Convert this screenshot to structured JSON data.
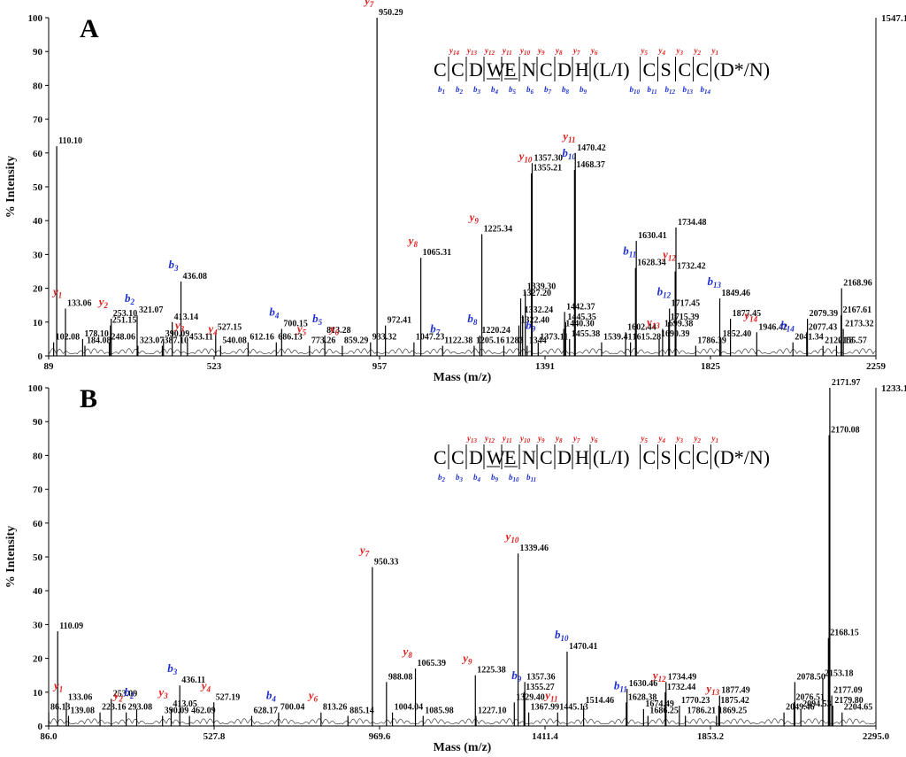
{
  "chart_data": [
    {
      "type": "spectrum",
      "panel_label": "A",
      "xlabel": "Mass (m/z)",
      "ylabel": "% Intensity",
      "xlim": [
        89,
        2259
      ],
      "ylim": [
        0,
        100
      ],
      "x_ticks": [
        "89",
        "523",
        "957",
        "1391",
        "1825",
        "2259"
      ],
      "y_ticks": [
        "0",
        "10",
        "20",
        "30",
        "40",
        "50",
        "60",
        "70",
        "80",
        "90",
        "100"
      ],
      "max_counts_label": "1547.1",
      "sequence": [
        "C",
        "|C",
        "|D",
        "|W",
        "|E",
        "|N",
        "|C",
        "|D",
        "|H",
        "|(L/I)",
        "|C",
        "|S",
        "|C",
        "|C",
        "|(D*/N)"
      ],
      "y_ions_top": [
        "y14",
        "y13",
        "y12",
        "y11",
        "y10",
        "y9",
        "y8",
        "y7",
        "y6",
        "y5",
        "y4",
        "y3",
        "y2",
        "y1"
      ],
      "b_ions_bottom": [
        "b1",
        "b2",
        "b3",
        "b4",
        "b5",
        "b6",
        "b7",
        "b8",
        "b9",
        "b10",
        "b11",
        "b12",
        "b13",
        "b14"
      ],
      "peaks": [
        {
          "x": 102.08,
          "y": 4,
          "label": "102.08"
        },
        {
          "x": 110.1,
          "y": 62,
          "label": "110.10"
        },
        {
          "x": 133.06,
          "y": 14,
          "label": "133.06",
          "ion": "y1"
        },
        {
          "x": 178.1,
          "y": 5,
          "label": "178.10"
        },
        {
          "x": 184.08,
          "y": 3,
          "label": "184.08"
        },
        {
          "x": 248.06,
          "y": 4,
          "label": "248.06"
        },
        {
          "x": 251.15,
          "y": 9,
          "label": "251.15"
        },
        {
          "x": 253.1,
          "y": 11,
          "label": "253.10",
          "ion": "y2"
        },
        {
          "x": 321.07,
          "y": 12,
          "label": "321.07",
          "ion": "b2"
        },
        {
          "x": 323.07,
          "y": 3,
          "label": "323.07"
        },
        {
          "x": 387.1,
          "y": 3,
          "label": "387.10"
        },
        {
          "x": 390.09,
          "y": 5,
          "label": "390.09"
        },
        {
          "x": 413.14,
          "y": 10,
          "label": "413.14"
        },
        {
          "x": 436.08,
          "y": 22,
          "label": "436.08",
          "ion": "b3"
        },
        {
          "x": 453.11,
          "y": 4,
          "label": "453.11",
          "ion": "y3"
        },
        {
          "x": 527.15,
          "y": 7,
          "label": "527.15"
        },
        {
          "x": 540.08,
          "y": 3,
          "label": "540.08",
          "ion": "y4"
        },
        {
          "x": 612.16,
          "y": 4,
          "label": "612.16"
        },
        {
          "x": 686.13,
          "y": 4,
          "label": "686.13"
        },
        {
          "x": 700.15,
          "y": 8,
          "label": "700.15",
          "ion": "b4"
        },
        {
          "x": 773.26,
          "y": 3,
          "label": "773.26",
          "ion": "y5"
        },
        {
          "x": 813.28,
          "y": 6,
          "label": "813.28",
          "ion": "b5"
        },
        {
          "x": 859.29,
          "y": 3,
          "label": "859.29",
          "ion": "y6"
        },
        {
          "x": 933.32,
          "y": 4,
          "label": "933.32"
        },
        {
          "x": 950.29,
          "y": 100,
          "label": "950.29",
          "ion": "y7"
        },
        {
          "x": 972.41,
          "y": 9,
          "label": "972.41"
        },
        {
          "x": 1047.23,
          "y": 4,
          "label": "1047.23"
        },
        {
          "x": 1065.31,
          "y": 29,
          "label": "1065.31",
          "ion": "y8"
        },
        {
          "x": 1122.38,
          "y": 3,
          "label": "1122.38",
          "ion": "b7"
        },
        {
          "x": 1205.16,
          "y": 3,
          "label": "1205.16"
        },
        {
          "x": 1220.24,
          "y": 6,
          "label": "1220.24",
          "ion": "b8"
        },
        {
          "x": 1225.34,
          "y": 36,
          "label": "1225.34",
          "ion": "y9"
        },
        {
          "x": 1283,
          "y": 3,
          "label": "1283"
        },
        {
          "x": 1322.4,
          "y": 9,
          "label": "1322.40"
        },
        {
          "x": 1327.2,
          "y": 17,
          "label": "1327.20"
        },
        {
          "x": 1332.24,
          "y": 12,
          "label": "1332.24"
        },
        {
          "x": 1339.3,
          "y": 19,
          "label": "1339.30"
        },
        {
          "x": 1344,
          "y": 3,
          "label": "1344"
        },
        {
          "x": 1355.21,
          "y": 54,
          "label": "1355.21",
          "ion": "y10"
        },
        {
          "x": 1357.3,
          "y": 57,
          "label": "1357.30"
        },
        {
          "x": 1373.11,
          "y": 4,
          "label": "1373.11",
          "ion": "b9"
        },
        {
          "x": 1440.3,
          "y": 8,
          "label": "1440.30"
        },
        {
          "x": 1442.37,
          "y": 13,
          "label": "1442.37"
        },
        {
          "x": 1445.35,
          "y": 10,
          "label": "1445.35"
        },
        {
          "x": 1455.38,
          "y": 5,
          "label": "1455.38"
        },
        {
          "x": 1468.37,
          "y": 55,
          "label": "1468.37",
          "ion": "b10"
        },
        {
          "x": 1470.42,
          "y": 60,
          "label": "1470.42",
          "ion": "y11"
        },
        {
          "x": 1539.41,
          "y": 4,
          "label": "1539.41"
        },
        {
          "x": 1602.44,
          "y": 7,
          "label": "1602.44"
        },
        {
          "x": 1615.28,
          "y": 4,
          "label": "1615.28"
        },
        {
          "x": 1628.34,
          "y": 26,
          "label": "1628.34",
          "ion": "b11"
        },
        {
          "x": 1630.41,
          "y": 34,
          "label": "1630.41"
        },
        {
          "x": 1690.39,
          "y": 5,
          "label": "1690.39",
          "ion": "y13"
        },
        {
          "x": 1699.38,
          "y": 8,
          "label": "1699.38"
        },
        {
          "x": 1715.39,
          "y": 10,
          "label": "1715.39"
        },
        {
          "x": 1717.45,
          "y": 14,
          "label": "1717.45",
          "ion": "b12"
        },
        {
          "x": 1732.42,
          "y": 25,
          "label": "1732.42",
          "ion": "y12"
        },
        {
          "x": 1734.48,
          "y": 38,
          "label": "1734.48"
        },
        {
          "x": 1786.39,
          "y": 3,
          "label": "1786.39"
        },
        {
          "x": 1849.46,
          "y": 17,
          "label": "1849.46",
          "ion": "b13"
        },
        {
          "x": 1852.4,
          "y": 5,
          "label": "1852.40"
        },
        {
          "x": 1877.45,
          "y": 11,
          "label": "1877.45"
        },
        {
          "x": 1946.42,
          "y": 7,
          "label": "1946.42",
          "ion": "y14"
        },
        {
          "x": 2041.34,
          "y": 4,
          "label": "2041.34",
          "ion": "b14"
        },
        {
          "x": 2077.43,
          "y": 7,
          "label": "2077.43"
        },
        {
          "x": 2079.39,
          "y": 11,
          "label": "2079.39"
        },
        {
          "x": 2120.18,
          "y": 3,
          "label": "2120.18"
        },
        {
          "x": 2155.57,
          "y": 3,
          "label": "2155.57"
        },
        {
          "x": 2167.61,
          "y": 12,
          "label": "2167.61"
        },
        {
          "x": 2168.96,
          "y": 20,
          "label": "2168.96"
        },
        {
          "x": 2173.32,
          "y": 8,
          "label": "2173.32"
        }
      ]
    },
    {
      "type": "spectrum",
      "panel_label": "B",
      "xlabel": "Mass (m/z)",
      "ylabel": "% Intensity",
      "xlim": [
        86.0,
        2295.0
      ],
      "ylim": [
        0,
        100
      ],
      "x_ticks": [
        "86.0",
        "527.8",
        "969.6",
        "1411.4",
        "1853.2",
        "2295.0"
      ],
      "y_ticks": [
        "0",
        "10",
        "20",
        "30",
        "40",
        "50",
        "60",
        "70",
        "80",
        "90",
        "100"
      ],
      "max_counts_label": "1233.1",
      "sequence": [
        "C",
        "|C",
        "|D",
        "|W",
        "|E",
        "|N",
        "|C",
        "|D",
        "|H",
        "|(L/I)",
        "|C",
        "|S",
        "|C",
        "|C",
        "|(D*/N)"
      ],
      "y_ions_top": [
        "y13",
        "y12",
        "y11",
        "y10",
        "y9",
        "y8",
        "y7",
        "y6",
        "y5",
        "y4",
        "y3",
        "y2",
        "y1"
      ],
      "b_ions_bottom": [
        "b2",
        "b3",
        "b4",
        "b9",
        "b10",
        "b11"
      ],
      "peaks": [
        {
          "x": 86.13,
          "y": 4,
          "label": "86.13"
        },
        {
          "x": 110.09,
          "y": 28,
          "label": "110.09"
        },
        {
          "x": 133.06,
          "y": 7,
          "label": "133.06",
          "ion": "y1"
        },
        {
          "x": 139.08,
          "y": 3,
          "label": "139.08"
        },
        {
          "x": 223.16,
          "y": 4,
          "label": "223.16"
        },
        {
          "x": 253.09,
          "y": 8,
          "label": "253.09"
        },
        {
          "x": 293.08,
          "y": 4,
          "label": "293.08",
          "ion": "y2"
        },
        {
          "x": 321.07,
          "y": 5,
          "label": "",
          "ion": "b2"
        },
        {
          "x": 390.09,
          "y": 3,
          "label": "390.09"
        },
        {
          "x": 413.05,
          "y": 5,
          "label": "413.05",
          "ion": "y3"
        },
        {
          "x": 436.11,
          "y": 12,
          "label": "436.11",
          "ion": "b3"
        },
        {
          "x": 462.09,
          "y": 3,
          "label": "462.09"
        },
        {
          "x": 527.19,
          "y": 7,
          "label": "527.19",
          "ion": "y4"
        },
        {
          "x": 628.17,
          "y": 3,
          "label": "628.17"
        },
        {
          "x": 700.04,
          "y": 4,
          "label": "700.04",
          "ion": "b4"
        },
        {
          "x": 813.26,
          "y": 4,
          "label": "813.26",
          "ion": "y6"
        },
        {
          "x": 885.14,
          "y": 3,
          "label": "885.14"
        },
        {
          "x": 950.33,
          "y": 47,
          "label": "950.33",
          "ion": "y7"
        },
        {
          "x": 988.08,
          "y": 13,
          "label": "988.08"
        },
        {
          "x": 1004.04,
          "y": 4,
          "label": "1004.04"
        },
        {
          "x": 1065.39,
          "y": 17,
          "label": "1065.39",
          "ion": "y8"
        },
        {
          "x": 1085.98,
          "y": 3,
          "label": "1085.98"
        },
        {
          "x": 1225.38,
          "y": 15,
          "label": "1225.38",
          "ion": "y9"
        },
        {
          "x": 1227.1,
          "y": 3,
          "label": "1227.10"
        },
        {
          "x": 1329.4,
          "y": 7,
          "label": "1329.40"
        },
        {
          "x": 1339.46,
          "y": 51,
          "label": "1339.46",
          "ion": "y10"
        },
        {
          "x": 1355.27,
          "y": 10,
          "label": "1355.27",
          "ion": "b9"
        },
        {
          "x": 1357.36,
          "y": 13,
          "label": "1357.36"
        },
        {
          "x": 1367.99,
          "y": 4,
          "label": "1367.99"
        },
        {
          "x": 1445.13,
          "y": 4,
          "label": "1445.13",
          "ion": "y11"
        },
        {
          "x": 1470.41,
          "y": 22,
          "label": "1470.41",
          "ion": "b10"
        },
        {
          "x": 1514.46,
          "y": 6,
          "label": "1514.46"
        },
        {
          "x": 1628.38,
          "y": 7,
          "label": "1628.38",
          "ion": "b11"
        },
        {
          "x": 1630.46,
          "y": 11,
          "label": "1630.46"
        },
        {
          "x": 1674.49,
          "y": 5,
          "label": "1674.49"
        },
        {
          "x": 1686.25,
          "y": 3,
          "label": "1686.25"
        },
        {
          "x": 1732.44,
          "y": 10,
          "label": "1732.44",
          "ion": "y12"
        },
        {
          "x": 1734.49,
          "y": 13,
          "label": "1734.49"
        },
        {
          "x": 1770.23,
          "y": 6,
          "label": "1770.23"
        },
        {
          "x": 1786.21,
          "y": 3,
          "label": "1786.21"
        },
        {
          "x": 1869.25,
          "y": 3,
          "label": "1869.25"
        },
        {
          "x": 1875.42,
          "y": 6,
          "label": "1875.42",
          "ion": "y13"
        },
        {
          "x": 1877.49,
          "y": 9,
          "label": "1877.49"
        },
        {
          "x": 2049.46,
          "y": 4,
          "label": "2049.46"
        },
        {
          "x": 2076.51,
          "y": 7,
          "label": "2076.51"
        },
        {
          "x": 2078.5,
          "y": 13,
          "label": "2078.50"
        },
        {
          "x": 2094.53,
          "y": 5,
          "label": "2094.53"
        },
        {
          "x": 2153.18,
          "y": 14,
          "label": "2153.18"
        },
        {
          "x": 2168.15,
          "y": 26,
          "label": "2168.15"
        },
        {
          "x": 2170.08,
          "y": 86,
          "label": "2170.08"
        },
        {
          "x": 2171.97,
          "y": 100,
          "label": "2171.97"
        },
        {
          "x": 2177.09,
          "y": 9,
          "label": "2177.09"
        },
        {
          "x": 2179.8,
          "y": 6,
          "label": "2179.80"
        },
        {
          "x": 2204.65,
          "y": 4,
          "label": "2204.65"
        }
      ]
    }
  ]
}
